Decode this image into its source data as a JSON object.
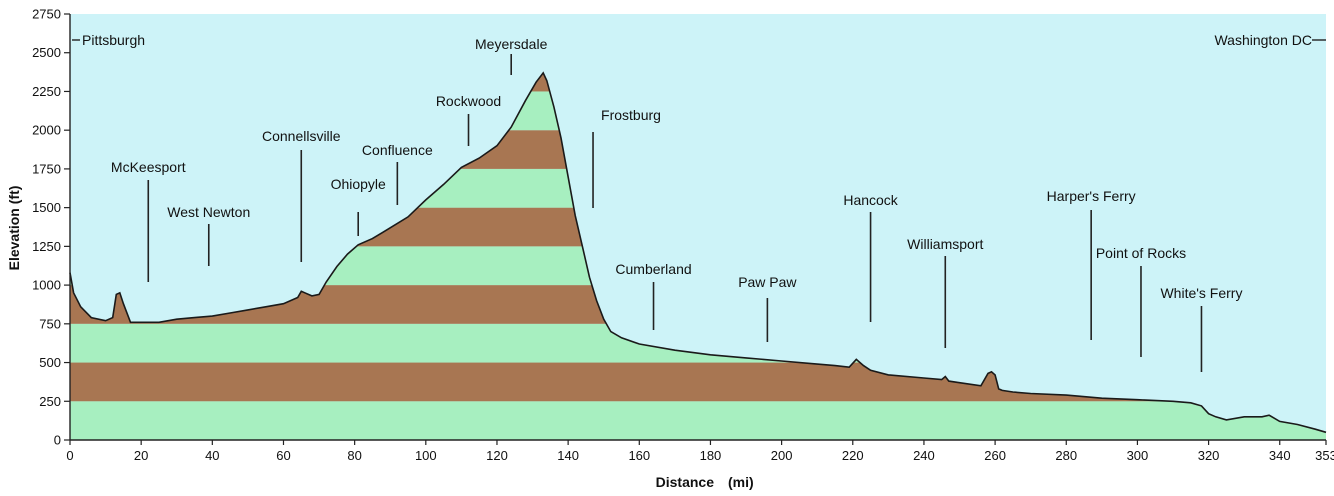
{
  "chart_data": {
    "type": "area",
    "xlabel": "Distance",
    "xlabel_unit": "(mi)",
    "ylabel": "Elevation (ft)",
    "xlim": [
      0,
      353
    ],
    "ylim": [
      0,
      2750
    ],
    "xticks": [
      "0",
      "20",
      "40",
      "60",
      "80",
      "100",
      "120",
      "140",
      "160",
      "180",
      "200",
      "220",
      "240",
      "260",
      "280",
      "300",
      "320",
      "340",
      "353"
    ],
    "yticks": [
      "0",
      "250",
      "500",
      "750",
      "1000",
      "1250",
      "1500",
      "1750",
      "2000",
      "2250",
      "2500",
      "2750"
    ],
    "band_interval_ft": 250,
    "colors": {
      "background": "#cdf3f8",
      "band_light": "#a7efc0",
      "band_dark": "#a87652",
      "outline": "#1a1a1a",
      "axis": "#222222"
    },
    "series": [
      {
        "x": [
          0,
          1,
          3,
          6,
          10,
          12,
          13,
          14,
          15,
          17,
          20,
          25,
          30,
          35,
          40,
          45,
          50,
          55,
          60,
          64,
          65,
          66,
          68,
          70,
          72,
          75,
          78,
          81,
          85,
          90,
          95,
          100,
          105,
          110,
          115,
          120,
          124,
          128,
          131,
          133,
          134,
          136,
          138,
          140,
          142,
          144,
          146,
          148,
          150,
          152,
          155,
          160,
          170,
          180,
          190,
          200,
          210,
          215,
          219,
          221,
          223,
          225,
          230,
          240,
          245,
          246,
          247,
          250,
          256,
          258,
          259,
          260,
          261,
          262,
          265,
          270,
          280,
          290,
          300,
          310,
          315,
          318,
          320,
          322,
          325,
          330,
          335,
          337,
          340,
          345,
          350,
          353
        ],
        "y": [
          1080,
          950,
          860,
          790,
          770,
          790,
          940,
          950,
          880,
          760,
          760,
          760,
          780,
          790,
          800,
          820,
          840,
          860,
          880,
          920,
          960,
          950,
          930,
          940,
          1020,
          1120,
          1200,
          1260,
          1300,
          1370,
          1440,
          1550,
          1650,
          1760,
          1820,
          1900,
          2020,
          2190,
          2310,
          2370,
          2320,
          2150,
          1950,
          1700,
          1450,
          1250,
          1050,
          900,
          780,
          700,
          660,
          620,
          580,
          550,
          530,
          510,
          490,
          480,
          470,
          520,
          480,
          450,
          420,
          400,
          390,
          410,
          380,
          370,
          350,
          430,
          440,
          420,
          330,
          320,
          310,
          300,
          290,
          270,
          260,
          250,
          240,
          220,
          170,
          150,
          130,
          150,
          150,
          160,
          120,
          100,
          70,
          50
        ]
      }
    ],
    "annotations": [
      {
        "label": "Pittsburgh",
        "x": 0
      },
      {
        "label": "McKeesport",
        "x": 22
      },
      {
        "label": "West Newton",
        "x": 39
      },
      {
        "label": "Connellsville",
        "x": 65
      },
      {
        "label": "Ohiopyle",
        "x": 81
      },
      {
        "label": "Confluence",
        "x": 92
      },
      {
        "label": "Rockwood",
        "x": 112
      },
      {
        "label": "Meyersdale",
        "x": 124
      },
      {
        "label": "Frostburg",
        "x": 147
      },
      {
        "label": "Cumberland",
        "x": 164
      },
      {
        "label": "Paw Paw",
        "x": 196
      },
      {
        "label": "Hancock",
        "x": 225
      },
      {
        "label": "Williamsport",
        "x": 246
      },
      {
        "label": "Harper's Ferry",
        "x": 287
      },
      {
        "label": "Point of Rocks",
        "x": 301
      },
      {
        "label": "White's Ferry",
        "x": 318
      },
      {
        "label": "Washington DC",
        "x": 353
      }
    ]
  }
}
